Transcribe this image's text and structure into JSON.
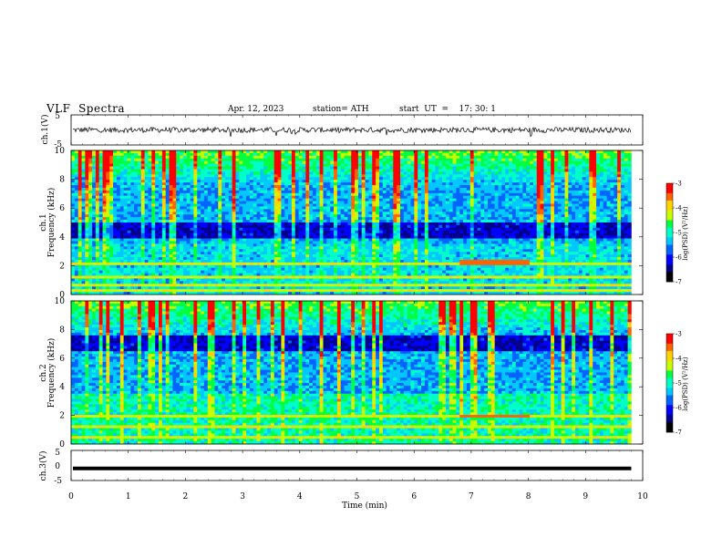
{
  "header": {
    "title": "VLF  Spectra",
    "date": "Apr. 12, 2023",
    "station": "station= ATH",
    "start_ut": "start  UT  =    17: 30: 1"
  },
  "chart_data": [
    {
      "type": "line",
      "panel": "ch1",
      "ylabel": "ch.1(V)",
      "ylim": [
        -5,
        5
      ],
      "yticks": [
        "5",
        "-5"
      ],
      "xlim": [
        0,
        10
      ],
      "noise_level_v": 0.0,
      "noise_amplitude_v": 0.9
    },
    {
      "type": "heatmap",
      "panel": "ch1-spectrogram",
      "ylabel": "Frequency  (kHz)",
      "ylabel_prefix": "ch.1",
      "ylim": [
        0,
        10
      ],
      "yticks": [
        "0",
        "2",
        "4",
        "6",
        "8",
        "10"
      ],
      "xlim": [
        0,
        9.8
      ],
      "colorbar": {
        "label": "log(PSD) (V²/Hz)",
        "range": [
          -7,
          -3
        ],
        "ticks": [
          "-3",
          "-4",
          "-5",
          "-6",
          "-7"
        ]
      },
      "features": {
        "quiet_band_khz": [
          3.8,
          5.0
        ],
        "strong_lines_khz": [
          0.3,
          0.6,
          1.2,
          2.1
        ],
        "highlighted_segment": {
          "t_min": [
            6.8,
            8.0
          ],
          "freq_khz": 2.2
        }
      }
    },
    {
      "type": "heatmap",
      "panel": "ch2-spectrogram",
      "ylabel": "Frequency  (kHz)",
      "ylabel_prefix": "ch.2",
      "ylim": [
        0,
        10
      ],
      "yticks": [
        "0",
        "2",
        "4",
        "6",
        "8",
        "10"
      ],
      "xlim": [
        0,
        9.8
      ],
      "colorbar": {
        "label": "log(PSD) (V²/Hz)",
        "range": [
          -7,
          -3
        ],
        "ticks": [
          "-3",
          "-4",
          "-5",
          "-6",
          "-7"
        ]
      },
      "features": {
        "quiet_band_khz": [
          6.5,
          7.5
        ],
        "strong_lines_khz": [
          0.5,
          1.2,
          1.9
        ],
        "highlighted_segment": {
          "t_min": [
            6.8,
            8.0
          ],
          "freq_khz": 1.9
        }
      }
    },
    {
      "type": "line",
      "panel": "ch3",
      "ylabel": "ch.3(V)",
      "ylim": [
        -5,
        5
      ],
      "yticks": [
        "5",
        "0",
        "-5"
      ],
      "xlim": [
        0,
        10
      ],
      "noise_level_v": -1.0,
      "noise_amplitude_v": 0.1
    }
  ],
  "x_axis": {
    "label": "Time  (min)",
    "ticks": [
      "0",
      "1",
      "2",
      "3",
      "4",
      "5",
      "6",
      "7",
      "8",
      "9",
      "10"
    ]
  },
  "colors": {
    "colormap": [
      "#000000",
      "#00008b",
      "#0000ff",
      "#0064ff",
      "#00c8ff",
      "#00ffc8",
      "#00ff40",
      "#c8ff00",
      "#ffd200",
      "#ff6400",
      "#ff0000",
      "#ffffff"
    ]
  }
}
